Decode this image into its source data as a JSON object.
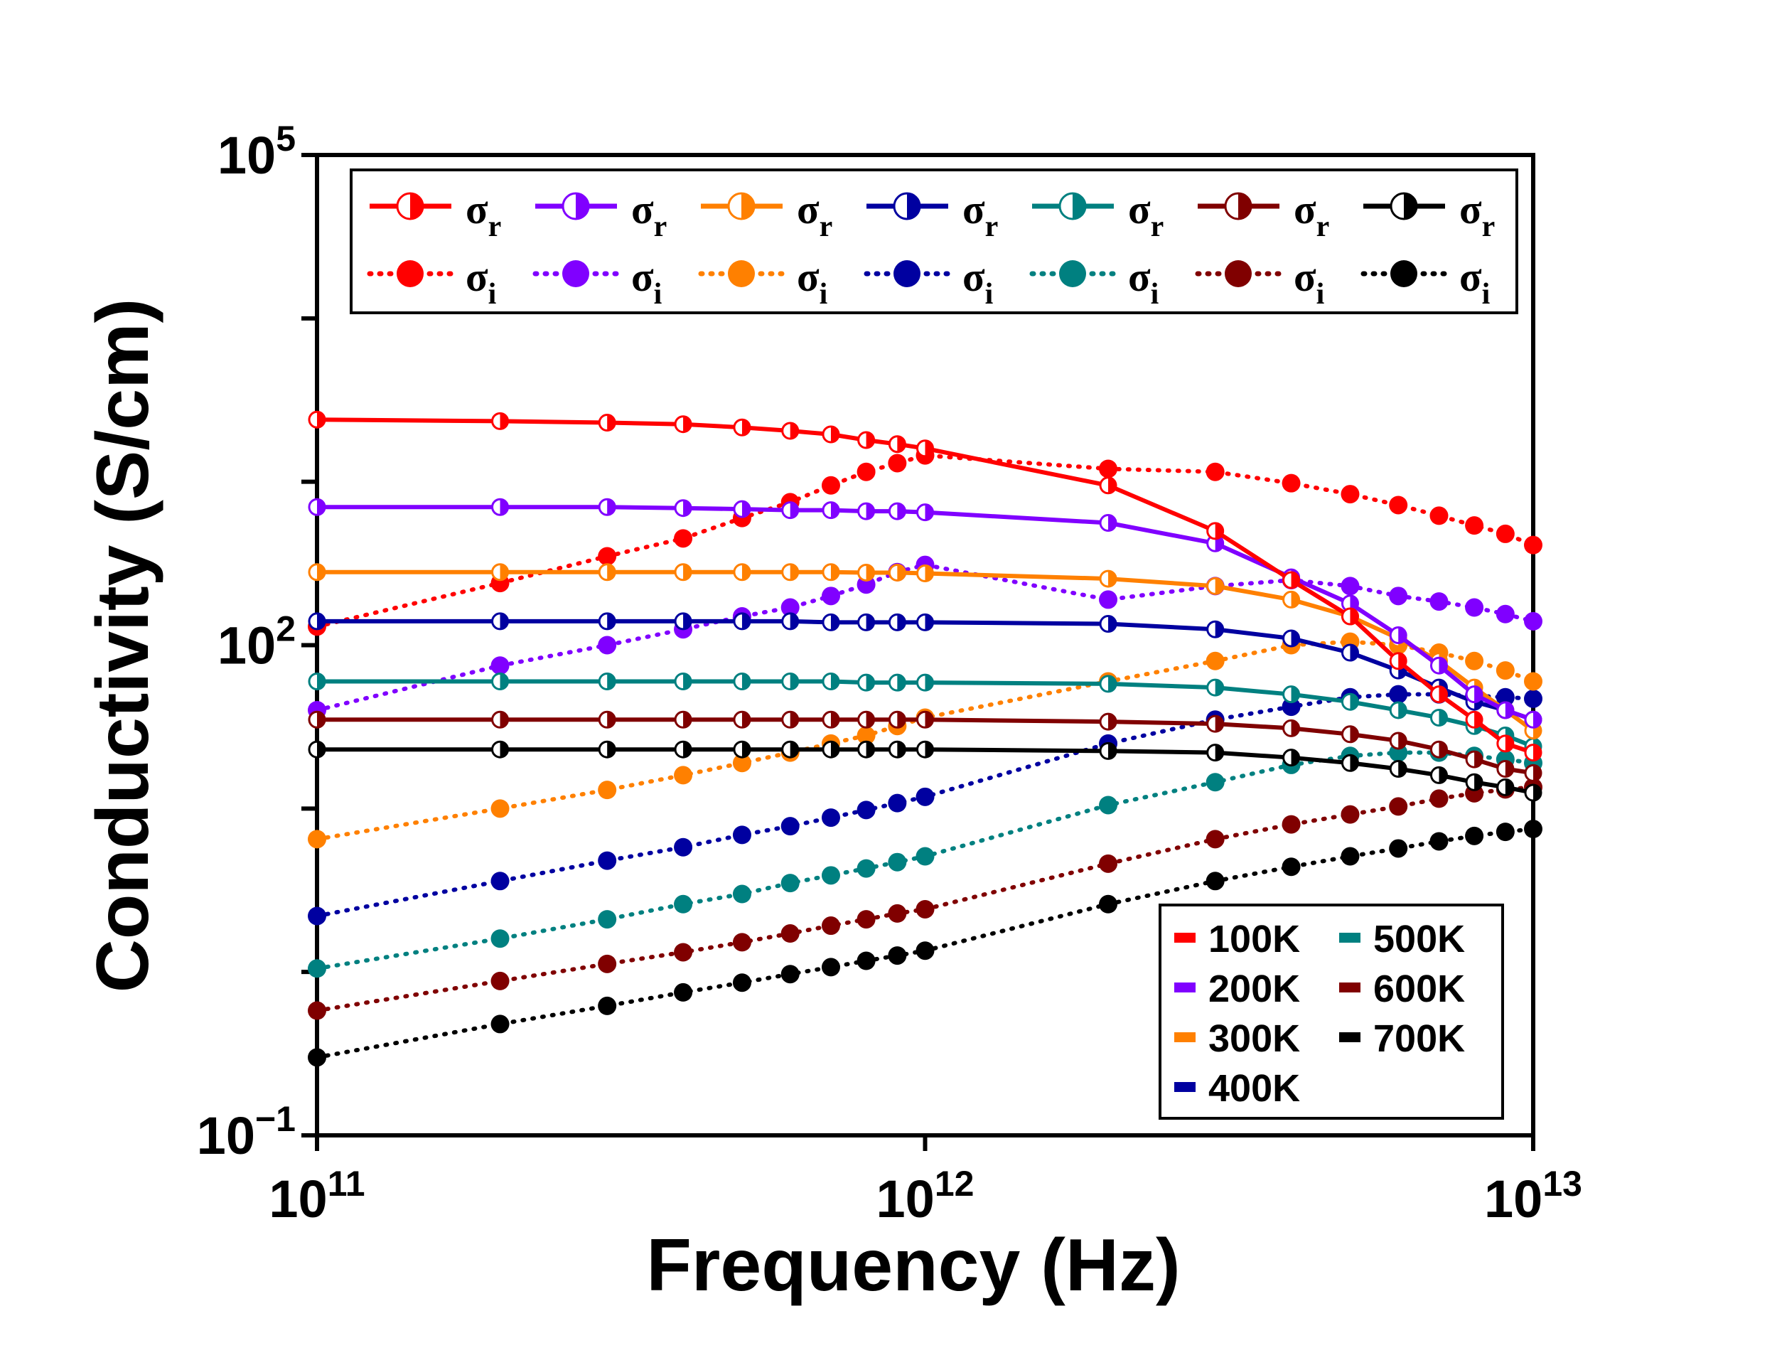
{
  "chart_data": {
    "type": "line",
    "title": "",
    "xlabel": "Frequency (Hz)",
    "ylabel": "Conductivity (S/cm)",
    "xscale": "log",
    "yscale": "log",
    "xlim": [
      100000000000.0,
      10000000000000.0
    ],
    "ylim": [
      0.1,
      100000
    ],
    "x_ticks": [
      {
        "base": "10",
        "exp": "11"
      },
      {
        "base": "10",
        "exp": "12"
      },
      {
        "base": "10",
        "exp": "13"
      }
    ],
    "y_ticks": [
      {
        "base": "10",
        "exp": "−1",
        "value": 0.1
      },
      {
        "base": "10",
        "exp": "2",
        "value": 100
      },
      {
        "base": "10",
        "exp": "5",
        "value": 100000
      }
    ],
    "x": [
      100000000000.0,
      200000000000.0,
      300000000000.0,
      400000000000.0,
      500000000000.0,
      600000000000.0,
      700000000000.0,
      800000000000.0,
      900000000000.0,
      1000000000000.0,
      2000000000000.0,
      3000000000000.0,
      4000000000000.0,
      5000000000000.0,
      6000000000000.0,
      7000000000000.0,
      8000000000000.0,
      9000000000000.0,
      10000000000000.0
    ],
    "series": [
      {
        "name": "100K",
        "color": "#ff0000",
        "sigma_r": [
          2400,
          2350,
          2300,
          2250,
          2150,
          2050,
          1950,
          1800,
          1700,
          1600,
          950,
          500,
          250,
          150,
          80,
          50,
          35,
          25,
          22
        ],
        "sigma_i": [
          130,
          240,
          350,
          450,
          600,
          750,
          950,
          1150,
          1300,
          1450,
          1200,
          1150,
          980,
          840,
          720,
          620,
          540,
          480,
          410
        ]
      },
      {
        "name": "200K",
        "color": "#8000ff",
        "sigma_r": [
          700,
          700,
          700,
          690,
          680,
          670,
          670,
          660,
          660,
          650,
          560,
          420,
          260,
          180,
          115,
          75,
          50,
          40,
          35
        ],
        "sigma_i": [
          40,
          75,
          100,
          125,
          150,
          170,
          200,
          235,
          280,
          310,
          190,
          230,
          250,
          230,
          200,
          185,
          170,
          155,
          140
        ]
      },
      {
        "name": "300K",
        "color": "#ff8000",
        "sigma_r": [
          280,
          280,
          280,
          280,
          280,
          280,
          280,
          278,
          278,
          275,
          255,
          230,
          190,
          150,
          110,
          80,
          55,
          40,
          30
        ],
        "sigma_i": [
          6.5,
          10,
          13,
          16,
          19,
          22,
          25,
          28,
          32,
          36,
          60,
          80,
          100,
          105,
          100,
          90,
          80,
          70,
          60
        ]
      },
      {
        "name": "400K",
        "color": "#0000a0",
        "sigma_r": [
          140,
          140,
          140,
          140,
          140,
          140,
          138,
          138,
          138,
          138,
          135,
          125,
          110,
          90,
          70,
          55,
          45,
          40,
          35
        ],
        "sigma_i": [
          2.2,
          3.6,
          4.8,
          5.8,
          6.9,
          7.8,
          8.8,
          9.8,
          10.8,
          11.8,
          25,
          35,
          42,
          48,
          50,
          50,
          49,
          48,
          47
        ]
      },
      {
        "name": "500K",
        "color": "#008080",
        "sigma_r": [
          60,
          60,
          60,
          60,
          60,
          60,
          60,
          59,
          59,
          59,
          58,
          55,
          50,
          45,
          40,
          36,
          32,
          28,
          24
        ],
        "sigma_i": [
          1.05,
          1.6,
          2.1,
          2.6,
          3.0,
          3.5,
          3.9,
          4.3,
          4.7,
          5.1,
          10.5,
          14.5,
          18.5,
          21,
          22,
          22,
          21,
          20,
          19
        ]
      },
      {
        "name": "600K",
        "color": "#800000",
        "sigma_r": [
          35,
          35,
          35,
          35,
          35,
          35,
          35,
          35,
          35,
          35,
          34,
          33,
          31,
          28.5,
          26,
          23,
          20,
          17.5,
          16.5
        ],
        "sigma_i": [
          0.58,
          0.88,
          1.12,
          1.32,
          1.52,
          1.72,
          1.92,
          2.1,
          2.28,
          2.42,
          4.6,
          6.5,
          8.0,
          9.2,
          10.3,
          11.5,
          12.4,
          13.1,
          13.5
        ]
      },
      {
        "name": "700K",
        "color": "#000000",
        "sigma_r": [
          23,
          23,
          23,
          23,
          23,
          23,
          23,
          23,
          23,
          23,
          22.5,
          22,
          20.5,
          19,
          17.5,
          16,
          14.5,
          13.5,
          12.5
        ],
        "sigma_i": [
          0.3,
          0.48,
          0.62,
          0.75,
          0.86,
          0.97,
          1.07,
          1.17,
          1.26,
          1.35,
          2.6,
          3.6,
          4.4,
          5.1,
          5.7,
          6.3,
          6.8,
          7.2,
          7.5
        ]
      }
    ],
    "legend_top": {
      "placement": "top",
      "rows": [
        {
          "kind": "solid",
          "symbol": "σ",
          "sub": "r"
        },
        {
          "kind": "dotted",
          "symbol": "σ",
          "sub": "i"
        }
      ]
    },
    "legend_temps": {
      "placement": "bottom-right",
      "labels": [
        "100K",
        "500K",
        "200K",
        "600K",
        "300K",
        "700K",
        "400K"
      ]
    }
  }
}
